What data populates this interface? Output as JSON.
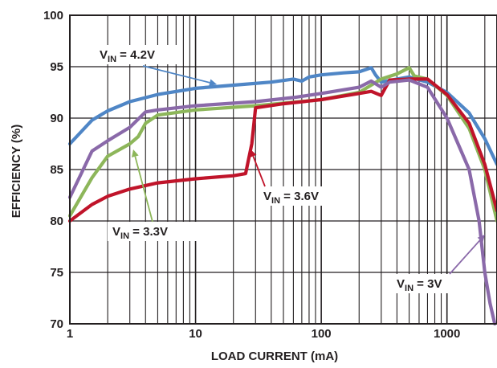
{
  "chart_data": {
    "type": "line",
    "xlabel": "LOAD CURRENT (mA)",
    "ylabel": "EFFICIENCY (%)",
    "xscale": "log",
    "xlim": [
      1,
      2500
    ],
    "ylim": [
      70,
      100
    ],
    "grid": true,
    "x_tick_labels": [
      {
        "value": 1,
        "label": "1"
      },
      {
        "value": 10,
        "label": "10"
      },
      {
        "value": 100,
        "label": "100"
      },
      {
        "value": 1000,
        "label": "1000"
      }
    ],
    "y_tick_labels": [
      {
        "value": 70,
        "label": "70"
      },
      {
        "value": 75,
        "label": "75"
      },
      {
        "value": 80,
        "label": "80"
      },
      {
        "value": 85,
        "label": "85"
      },
      {
        "value": 90,
        "label": "90"
      },
      {
        "value": 95,
        "label": "95"
      },
      {
        "value": 100,
        "label": "100"
      }
    ],
    "series": [
      {
        "name": "VIN = 4.2V",
        "label_main": "V",
        "label_sub": "IN",
        "label_rest": " = 4.2V",
        "color": "#4f86c6",
        "points": [
          [
            1,
            87.5
          ],
          [
            1.5,
            89.8
          ],
          [
            2,
            90.7
          ],
          [
            3,
            91.6
          ],
          [
            5,
            92.3
          ],
          [
            10,
            92.9
          ],
          [
            20,
            93.2
          ],
          [
            40,
            93.5
          ],
          [
            60,
            93.8
          ],
          [
            70,
            93.6
          ],
          [
            80,
            94.0
          ],
          [
            100,
            94.2
          ],
          [
            150,
            94.4
          ],
          [
            200,
            94.5
          ],
          [
            250,
            94.9
          ],
          [
            270,
            94.2
          ],
          [
            300,
            93.5
          ],
          [
            400,
            93.8
          ],
          [
            500,
            94.0
          ],
          [
            700,
            93.5
          ],
          [
            1000,
            92.5
          ],
          [
            1500,
            90.5
          ],
          [
            2000,
            88.0
          ],
          [
            2500,
            85.5
          ]
        ]
      },
      {
        "name": "VIN = 3.6V",
        "label_main": "V",
        "label_sub": "IN",
        "label_rest": " = 3.6V",
        "color": "#c0142a",
        "points": [
          [
            1,
            80.0
          ],
          [
            1.5,
            81.6
          ],
          [
            2,
            82.4
          ],
          [
            3,
            83.1
          ],
          [
            5,
            83.7
          ],
          [
            10,
            84.1
          ],
          [
            20,
            84.4
          ],
          [
            25,
            84.6
          ],
          [
            28,
            87.5
          ],
          [
            30,
            91.0
          ],
          [
            50,
            91.4
          ],
          [
            100,
            91.8
          ],
          [
            200,
            92.4
          ],
          [
            250,
            92.6
          ],
          [
            300,
            92.2
          ],
          [
            350,
            93.7
          ],
          [
            500,
            93.8
          ],
          [
            700,
            93.8
          ],
          [
            1000,
            92.3
          ],
          [
            1500,
            89.5
          ],
          [
            2000,
            85.5
          ],
          [
            2500,
            81.0
          ]
        ]
      },
      {
        "name": "VIN = 3.3V",
        "label_main": "V",
        "label_sub": "IN",
        "label_rest": " = 3.3V",
        "color": "#8db65a",
        "points": [
          [
            1,
            80.5
          ],
          [
            1.5,
            84.2
          ],
          [
            2,
            86.3
          ],
          [
            3,
            87.5
          ],
          [
            3.5,
            88.2
          ],
          [
            4,
            89.5
          ],
          [
            5,
            90.3
          ],
          [
            10,
            90.8
          ],
          [
            30,
            91.2
          ],
          [
            100,
            91.8
          ],
          [
            200,
            92.5
          ],
          [
            300,
            93.8
          ],
          [
            400,
            94.3
          ],
          [
            500,
            94.9
          ],
          [
            550,
            94.1
          ],
          [
            700,
            93.8
          ],
          [
            1000,
            92.2
          ],
          [
            1500,
            89.0
          ],
          [
            2000,
            85.0
          ],
          [
            2500,
            80.0
          ]
        ]
      },
      {
        "name": "VIN = 3V",
        "label_main": "V",
        "label_sub": "IN",
        "label_rest": " = 3V",
        "color": "#8a69a9",
        "points": [
          [
            1,
            82.3
          ],
          [
            1.5,
            86.8
          ],
          [
            2,
            87.8
          ],
          [
            3,
            89.1
          ],
          [
            4,
            90.6
          ],
          [
            5,
            90.8
          ],
          [
            10,
            91.2
          ],
          [
            30,
            91.6
          ],
          [
            60,
            92.0
          ],
          [
            100,
            92.4
          ],
          [
            200,
            93.0
          ],
          [
            250,
            93.6
          ],
          [
            300,
            93.0
          ],
          [
            350,
            93.5
          ],
          [
            500,
            93.7
          ],
          [
            700,
            93.0
          ],
          [
            1000,
            90.0
          ],
          [
            1500,
            85.0
          ],
          [
            1800,
            80.0
          ],
          [
            2000,
            75.0
          ],
          [
            2200,
            72.0
          ],
          [
            2400,
            70.0
          ]
        ]
      }
    ]
  }
}
